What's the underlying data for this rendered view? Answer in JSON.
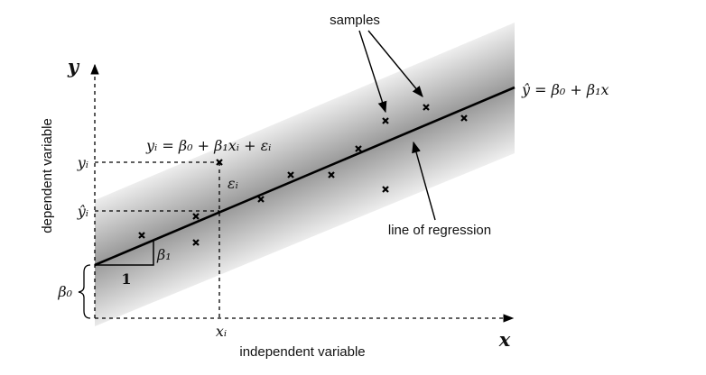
{
  "labels": {
    "samples": "samples",
    "line_of_regression": "line of regression",
    "y_axis_title": "dependent variable",
    "x_axis_title": "independent variable",
    "x_axis": "x",
    "y_axis": "y",
    "y_i": "yᵢ",
    "y_hat_i": "ŷᵢ",
    "x_i": "xᵢ",
    "epsilon_i": "εᵢ",
    "beta_0": "β₀",
    "beta_1": "β₁",
    "run": "1",
    "sample_equation": "yᵢ = β₀ + β₁xᵢ + εᵢ",
    "regression_equation": "ŷ = β₀ + β₁x"
  }
}
